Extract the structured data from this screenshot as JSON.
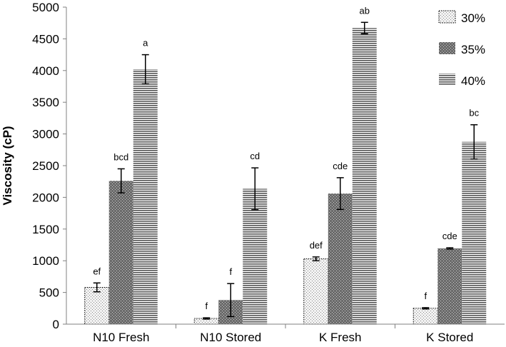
{
  "chart_data": {
    "type": "bar",
    "ylabel": "Viscosity (cP)",
    "ylim": [
      0,
      5000
    ],
    "yticks": [
      0,
      500,
      1000,
      1500,
      2000,
      2500,
      3000,
      3500,
      4000,
      4500,
      5000
    ],
    "categories": [
      "N10 Fresh",
      "N10 Stored",
      "K Fresh",
      "K Stored"
    ],
    "legend_position": "top-right",
    "grid": false,
    "series": [
      {
        "name": "30%",
        "pattern": "dots",
        "values": [
          580,
          90,
          1030,
          250
        ],
        "errors": [
          70,
          10,
          30,
          10
        ],
        "labels": [
          "ef",
          "f",
          "def",
          "f"
        ]
      },
      {
        "name": "35%",
        "pattern": "dense-dots",
        "values": [
          2260,
          380,
          2060,
          1195
        ],
        "errors": [
          190,
          260,
          250,
          10
        ],
        "labels": [
          "bcd",
          "f",
          "cde",
          "cde"
        ]
      },
      {
        "name": "40%",
        "pattern": "horizontal-lines",
        "values": [
          4020,
          2135,
          4670,
          2875
        ],
        "errors": [
          230,
          330,
          90,
          270
        ],
        "labels": [
          "a",
          "cd",
          "ab",
          "bc"
        ]
      }
    ]
  }
}
